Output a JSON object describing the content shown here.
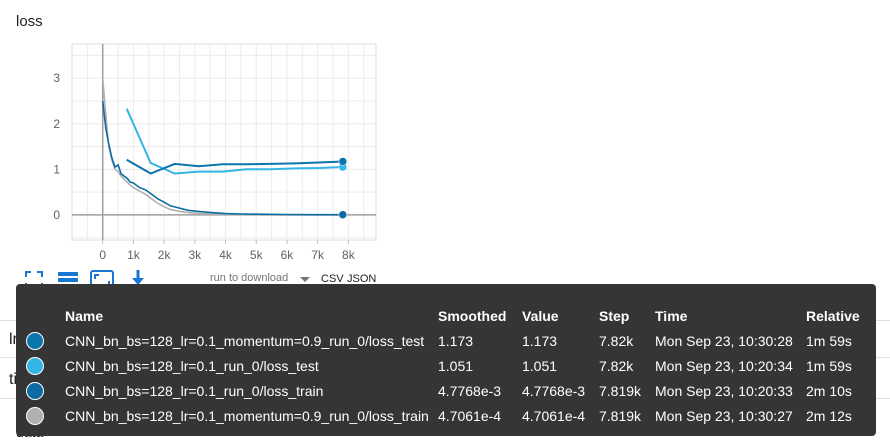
{
  "card": {
    "title": "loss"
  },
  "chart_data": {
    "type": "line",
    "title": "loss",
    "xlim": [
      -1000,
      8900
    ],
    "ylim": [
      -0.55,
      3.75
    ],
    "x_ticks": [
      0,
      1000,
      2000,
      3000,
      4000,
      5000,
      6000,
      7000,
      8000
    ],
    "x_tick_labels": [
      "0",
      "1k",
      "2k",
      "3k",
      "4k",
      "5k",
      "6k",
      "7k",
      "8k"
    ],
    "y_ticks": [
      0,
      1,
      2,
      3
    ],
    "y_tick_labels": [
      "0",
      "1",
      "2",
      "3"
    ],
    "grid": true,
    "series": [
      {
        "name": "CNN_bn_bs=128_lr=0.1_momentum=0.9_run_0/loss_test",
        "color": "#0d75ad",
        "x": [
          782,
          1564,
          2346,
          3128,
          3910,
          4692,
          5474,
          6256,
          7038,
          7820
        ],
        "y": [
          1.21,
          0.91,
          1.12,
          1.07,
          1.11,
          1.11,
          1.12,
          1.13,
          1.15,
          1.173
        ]
      },
      {
        "name": "CNN_bn_bs=128_lr=0.1_run_0/loss_test",
        "color": "#33b5e5",
        "x": [
          782,
          1564,
          2346,
          3128,
          3910,
          4692,
          5474,
          6256,
          7038,
          7820
        ],
        "y": [
          2.33,
          1.14,
          0.91,
          0.95,
          0.95,
          1.0,
          1.0,
          1.02,
          1.03,
          1.051
        ]
      },
      {
        "name": "CNN_bn_bs=128_lr=0.1_run_0/loss_train",
        "color": "#0d6ba3",
        "x": [
          0,
          100,
          200,
          300,
          400,
          500,
          600,
          700,
          800,
          900,
          1000,
          1200,
          1400,
          1600,
          1800,
          2000,
          2200,
          2500,
          2800,
          3200,
          3600,
          4000,
          4500,
          5000,
          6000,
          7000,
          7819
        ],
        "y": [
          2.5,
          1.9,
          1.55,
          1.25,
          1.05,
          1.1,
          0.9,
          0.85,
          0.8,
          0.72,
          0.7,
          0.6,
          0.55,
          0.45,
          0.35,
          0.28,
          0.2,
          0.15,
          0.1,
          0.07,
          0.05,
          0.03,
          0.02,
          0.015,
          0.01,
          0.006,
          0.0048
        ]
      },
      {
        "name": "CNN_bn_bs=128_lr=0.1_momentum=0.9_run_0/loss_train",
        "color": "#b0b0b0",
        "x": [
          0,
          100,
          200,
          300,
          400,
          500,
          600,
          700,
          800,
          900,
          1000,
          1200,
          1400,
          1600,
          1800,
          2000,
          2200,
          2500,
          2800,
          3200,
          3600,
          4000,
          4500,
          5000,
          6000,
          7000,
          7819
        ],
        "y": [
          3.0,
          2.2,
          1.5,
          1.2,
          1.0,
          0.95,
          0.85,
          0.78,
          0.72,
          0.65,
          0.6,
          0.52,
          0.45,
          0.35,
          0.25,
          0.18,
          0.12,
          0.08,
          0.05,
          0.03,
          0.02,
          0.01,
          0.005,
          0.003,
          0.001,
          0.0008,
          0.00047
        ]
      }
    ]
  },
  "toolbar": {
    "fit_icon": "fit-domain-icon",
    "log_icon": "y-log-scale-icon",
    "expand_icon": "expand-chart-icon",
    "download_icon": "download-icon",
    "run_select_placeholder": "run to download",
    "csv": "CSV",
    "json": "JSON"
  },
  "behind": {
    "lr": "lr",
    "time": "time",
    "data": "data"
  },
  "tooltip": {
    "headers": {
      "name": "Name",
      "smoothed": "Smoothed",
      "value": "Value",
      "step": "Step",
      "time": "Time",
      "relative": "Relative"
    },
    "rows": [
      {
        "color": "#0d75ad",
        "name": "CNN_bn_bs=128_lr=0.1_momentum=0.9_run_0/loss_test",
        "smoothed": "1.173",
        "value": "1.173",
        "step": "7.82k",
        "time": "Mon Sep 23, 10:30:28",
        "relative": "1m 59s"
      },
      {
        "color": "#33b5e5",
        "name": "CNN_bn_bs=128_lr=0.1_run_0/loss_test",
        "smoothed": "1.051",
        "value": "1.051",
        "step": "7.82k",
        "time": "Mon Sep 23, 10:20:34",
        "relative": "1m 59s"
      },
      {
        "color": "#0d6ba3",
        "name": "CNN_bn_bs=128_lr=0.1_run_0/loss_train",
        "smoothed": "4.7768e-3",
        "value": "4.7768e-3",
        "step": "7.819k",
        "time": "Mon Sep 23, 10:20:33",
        "relative": "2m 10s"
      },
      {
        "color": "#b0b0b0",
        "name": "CNN_bn_bs=128_lr=0.1_momentum=0.9_run_0/loss_train",
        "smoothed": "4.7061e-4",
        "value": "4.7061e-4",
        "step": "7.819k",
        "time": "Mon Sep 23, 10:30:27",
        "relative": "2m 12s"
      }
    ]
  }
}
